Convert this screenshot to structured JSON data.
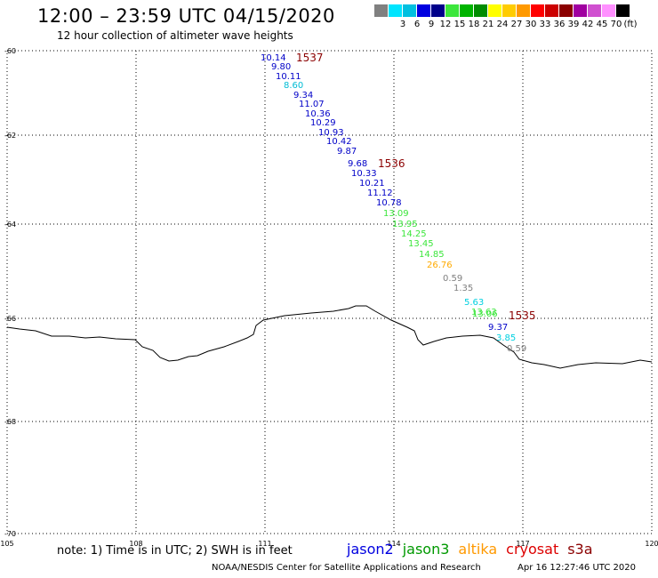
{
  "header": {
    "title": "12:00 – 23:59 UTC 04/15/2020",
    "subtitle": "12 hour collection of altimeter wave heights"
  },
  "colorbar": {
    "unit_label": "(ft)",
    "swatches": [
      {
        "label": "",
        "color": "#808080"
      },
      {
        "label": "3",
        "color": "#00e5ff"
      },
      {
        "label": "6",
        "color": "#00c0e0"
      },
      {
        "label": "9",
        "color": "#0000e0"
      },
      {
        "label": "12",
        "color": "#00008b"
      },
      {
        "label": "15",
        "color": "#3ce63c"
      },
      {
        "label": "18",
        "color": "#00b400"
      },
      {
        "label": "21",
        "color": "#008c00"
      },
      {
        "label": "24",
        "color": "#ffff00"
      },
      {
        "label": "27",
        "color": "#ffcc00"
      },
      {
        "label": "30",
        "color": "#ff9900"
      },
      {
        "label": "33",
        "color": "#ff0000"
      },
      {
        "label": "36",
        "color": "#cc0000"
      },
      {
        "label": "39",
        "color": "#8b0000"
      },
      {
        "label": "42",
        "color": "#a000a0"
      },
      {
        "label": "45",
        "color": "#d050d0"
      },
      {
        "label": "70",
        "color": "#ff90ff"
      },
      {
        "label": "",
        "color": "#000000"
      }
    ]
  },
  "map": {
    "lon_ticks": [
      "105",
      "108",
      "111",
      "114",
      "117",
      "120"
    ],
    "lat_ticks": [
      "-60",
      "-62",
      "-64",
      "-66",
      "-68",
      "-70"
    ],
    "time_labels": [
      "1537",
      "1536",
      "1535"
    ],
    "wave_heights": [
      {
        "text": "10.14",
        "color": "#0000c8"
      },
      {
        "text": "9.80",
        "color": "#0000c8"
      },
      {
        "text": "10.11",
        "color": "#0000c8"
      },
      {
        "text": "8.60",
        "color": "#00bcd4"
      },
      {
        "text": "9.34",
        "color": "#0000c8"
      },
      {
        "text": "11.07",
        "color": "#0000c8"
      },
      {
        "text": "10.36",
        "color": "#0000c8"
      },
      {
        "text": "10.29",
        "color": "#0000c8"
      },
      {
        "text": "10.93",
        "color": "#0000c8"
      },
      {
        "text": "10.42",
        "color": "#0000c8"
      },
      {
        "text": "9.87",
        "color": "#0000c8"
      },
      {
        "text": "9.68",
        "color": "#0000c8"
      },
      {
        "text": "10.33",
        "color": "#0000c8"
      },
      {
        "text": "10.21",
        "color": "#0000c8"
      },
      {
        "text": "11.12",
        "color": "#0000c8"
      },
      {
        "text": "10.78",
        "color": "#0000c8"
      },
      {
        "text": "13.09",
        "color": "#3ce63c"
      },
      {
        "text": "13.95",
        "color": "#3ce63c"
      },
      {
        "text": "14.25",
        "color": "#3ce63c"
      },
      {
        "text": "13.45",
        "color": "#3ce63c"
      },
      {
        "text": "14.85",
        "color": "#3ce63c"
      },
      {
        "text": "26.76",
        "color": "#ffaa00"
      },
      {
        "text": "0.59",
        "color": "#808080"
      },
      {
        "text": "1.35",
        "color": "#808080"
      },
      {
        "text": "5.63",
        "color": "#00d0e0"
      },
      {
        "text": "13.63",
        "color": "#3ce63c"
      },
      {
        "text": "13.06",
        "color": "#3ce63c"
      },
      {
        "text": "9.37",
        "color": "#0000c8"
      },
      {
        "text": "3.85",
        "color": "#00d0e0"
      },
      {
        "text": "0.59",
        "color": "#808080"
      }
    ]
  },
  "footer": {
    "note": "note:  1) Time is in UTC;  2) SWH is in feet",
    "legend": [
      {
        "label": "jason2",
        "color": "#0000e0"
      },
      {
        "label": "jason3",
        "color": "#009900"
      },
      {
        "label": "altika",
        "color": "#ff9900"
      },
      {
        "label": "cryosat",
        "color": "#dd0000"
      },
      {
        "label": "s3a",
        "color": "#8b0000"
      }
    ],
    "credit": "NOAA/NESDIS Center for Satellite Applications and Research",
    "timestamp": "Apr 16 12:27:46 UTC 2020"
  }
}
